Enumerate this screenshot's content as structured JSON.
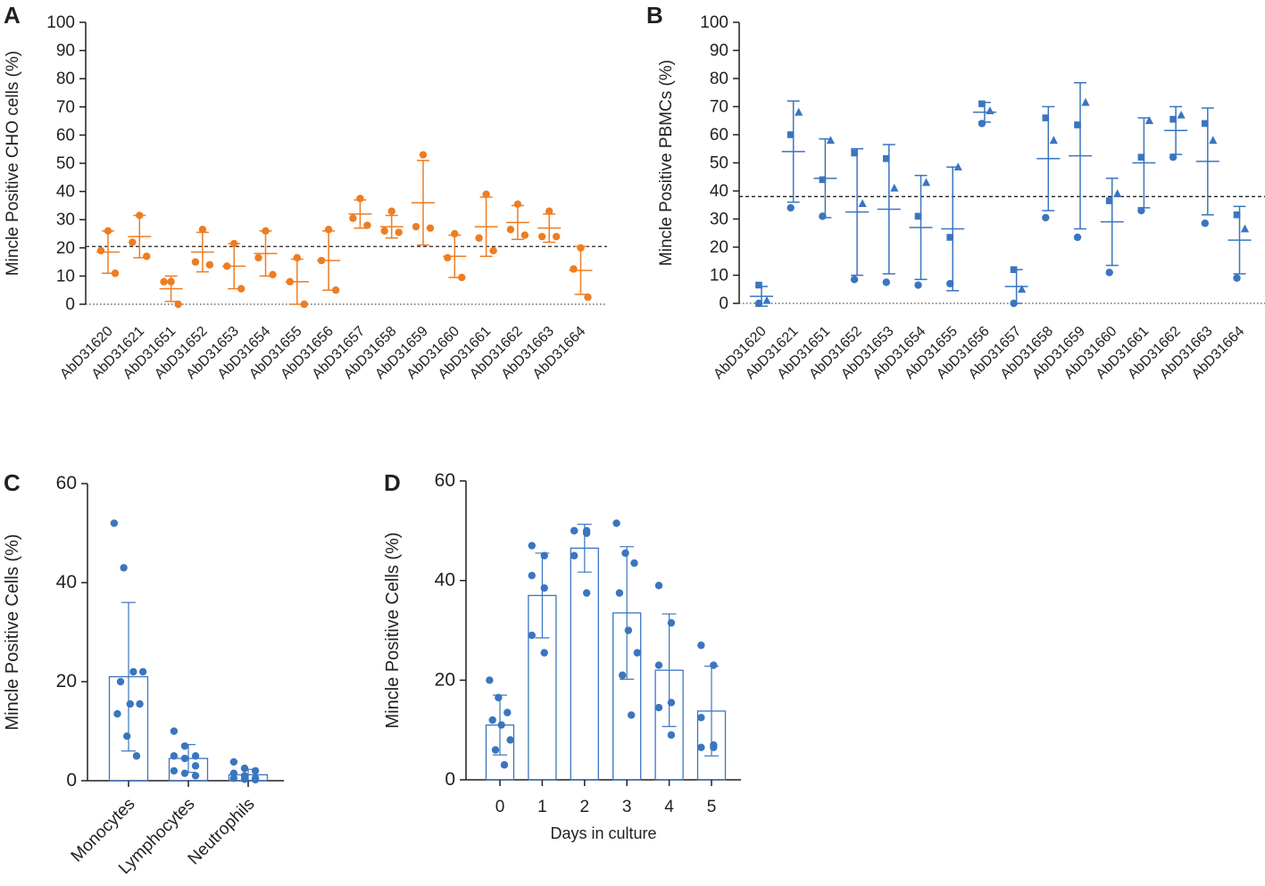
{
  "colors": {
    "orange": "#ee7d22",
    "blue": "#3a75bf",
    "axis": "#231f20"
  },
  "chart_data": [
    {
      "panel": "A",
      "type": "scatter",
      "ylabel": "Mincle Positive CHO cells (%)",
      "ylim": [
        0,
        100
      ],
      "yticks": [
        0,
        10,
        20,
        30,
        40,
        50,
        60,
        70,
        80,
        90,
        100
      ],
      "threshold": 20.5,
      "categories": [
        "AbD31620",
        "AbD31621",
        "AbD31651",
        "AbD31652",
        "AbD31653",
        "AbD31654",
        "AbD31655",
        "AbD31656",
        "AbD31657",
        "AbD31658",
        "AbD31659",
        "AbD31660",
        "AbD31661",
        "AbD31662",
        "AbD31663",
        "AbD31664"
      ],
      "points": [
        [
          26,
          19,
          11
        ],
        [
          31.5,
          22,
          17
        ],
        [
          8,
          8,
          0
        ],
        [
          26.5,
          15,
          14
        ],
        [
          21.5,
          13.5,
          5.5
        ],
        [
          26,
          16.5,
          10.5
        ],
        [
          16.5,
          8,
          0
        ],
        [
          26.5,
          15.5,
          5
        ],
        [
          37.5,
          30.5,
          28
        ],
        [
          33,
          26,
          25.5
        ],
        [
          53,
          27.5,
          27
        ],
        [
          25,
          16.5,
          9.5
        ],
        [
          39,
          23.5,
          19
        ],
        [
          35.5,
          26.5,
          24.5
        ],
        [
          33,
          24,
          24
        ],
        [
          20,
          12.5,
          2.5
        ]
      ],
      "means": [
        18.5,
        24,
        5.5,
        18.5,
        13.5,
        18,
        8,
        15.5,
        32,
        27.5,
        36,
        17,
        27.5,
        29,
        27,
        12
      ],
      "sd": [
        7.5,
        7.5,
        4.5,
        7,
        8,
        8,
        8,
        10.5,
        5,
        4,
        15,
        7.5,
        10.5,
        6,
        5,
        8.5
      ],
      "color": "#ee7d22"
    },
    {
      "panel": "B",
      "type": "scatter",
      "ylabel": "Mincle Positive PBMCs (%)",
      "ylim": [
        0,
        100
      ],
      "yticks": [
        0,
        10,
        20,
        30,
        40,
        50,
        60,
        70,
        80,
        90,
        100
      ],
      "threshold": 38,
      "categories": [
        "AbD31620",
        "AbD31621",
        "AbD31651",
        "AbD31652",
        "AbD31653",
        "AbD31654",
        "AbD31655",
        "AbD31656",
        "AbD31657",
        "AbD31658",
        "AbD31659",
        "AbD31660",
        "AbD31661",
        "AbD31662",
        "AbD31663",
        "AbD31664"
      ],
      "points": [
        [
          6.5,
          1,
          0
        ],
        [
          60,
          68,
          34
        ],
        [
          44,
          58,
          31
        ],
        [
          53.5,
          35.5,
          8.5
        ],
        [
          51.5,
          41,
          7.5
        ],
        [
          31,
          43,
          6.5
        ],
        [
          23.5,
          48.5,
          7
        ],
        [
          71,
          68.5,
          64
        ],
        [
          12,
          5,
          0
        ],
        [
          66,
          58,
          30.5
        ],
        [
          63.5,
          71.5,
          23.5
        ],
        [
          36.5,
          39,
          11
        ],
        [
          52,
          65,
          33
        ],
        [
          65.5,
          67,
          52
        ],
        [
          64,
          58,
          28.5
        ],
        [
          31.5,
          26.5,
          9
        ]
      ],
      "marker_order": [
        "square",
        "triangle",
        "circle"
      ],
      "means": [
        2.5,
        54,
        44.5,
        32.5,
        33.5,
        27,
        26.5,
        68,
        6,
        51.5,
        52.5,
        29,
        50,
        61.5,
        50.5,
        22.5
      ],
      "sd": [
        3.5,
        18,
        14,
        22.5,
        23,
        18.5,
        22,
        3.5,
        6,
        18.5,
        26,
        15.5,
        16,
        8.5,
        19,
        12
      ],
      "color": "#3a75bf"
    },
    {
      "panel": "C",
      "type": "bar",
      "ylabel": "Mincle Positive Cells (%)",
      "ylim": [
        0,
        60
      ],
      "yticks": [
        0,
        20,
        40,
        60
      ],
      "categories": [
        "Monocytes",
        "Lymphocytes",
        "Neutrophils"
      ],
      "means": [
        21,
        4.5,
        1.2
      ],
      "sd": [
        15,
        2.8,
        1.1
      ],
      "points": [
        [
          52,
          43,
          22,
          22,
          20,
          15.5,
          15.5,
          13.5,
          9,
          5
        ],
        [
          10,
          7,
          5,
          5,
          4.5,
          3,
          2,
          1.5,
          1
        ],
        [
          3.8,
          2.5,
          2,
          1.5,
          1,
          0.5,
          0.5,
          0.3,
          0.2
        ]
      ],
      "color": "#3a75bf"
    },
    {
      "panel": "D",
      "type": "bar",
      "xlabel": "Days in culture",
      "ylabel": "Mincle Positive Cells (%)",
      "ylim": [
        0,
        60
      ],
      "yticks": [
        0,
        20,
        40,
        60
      ],
      "categories": [
        "0",
        "1",
        "2",
        "3",
        "4",
        "5"
      ],
      "means": [
        11,
        37,
        46.5,
        33.5,
        22,
        13.8
      ],
      "sd": [
        6,
        8.5,
        4.8,
        13.3,
        11.3,
        9
      ],
      "points": [
        [
          20,
          16.5,
          13.5,
          12,
          11,
          8,
          6,
          3
        ],
        [
          47,
          45,
          41,
          38.5,
          29,
          25.5
        ],
        [
          50,
          50,
          50,
          49.5,
          45,
          37.5
        ],
        [
          51.5,
          45.5,
          43.5,
          37.5,
          30,
          25.5,
          21,
          13
        ],
        [
          39,
          31.5,
          23,
          15.5,
          14.5,
          9
        ],
        [
          27,
          23,
          12.5,
          7,
          6.5,
          6.5
        ]
      ],
      "color": "#3a75bf"
    }
  ]
}
